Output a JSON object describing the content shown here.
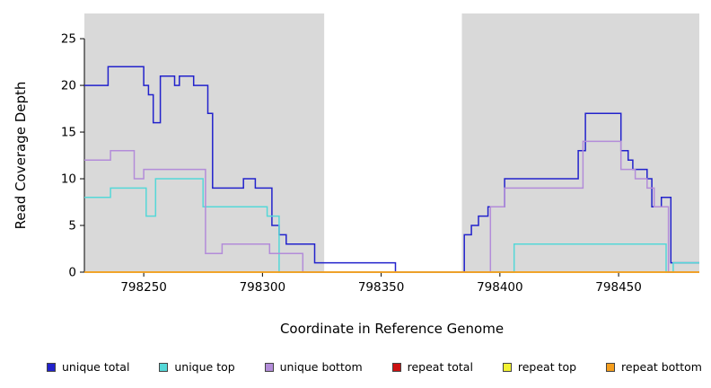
{
  "chart_data": {
    "type": "line",
    "subtype": "step",
    "xlabel": "Coordinate in Reference Genome",
    "ylabel": "Read Coverage Depth",
    "xlim": [
      798225,
      798484
    ],
    "ylim": [
      0,
      27.7
    ],
    "xticks": [
      798250,
      798300,
      798350,
      798400,
      798450
    ],
    "yticks": [
      0,
      5,
      10,
      15,
      20,
      25
    ],
    "grid": "off",
    "legend_position": "bottom",
    "plot_background": "#ffffff",
    "shaded_regions": [
      {
        "x0": 798225,
        "x1": 798326,
        "color": "#d9d9d9"
      },
      {
        "x0": 798384,
        "x1": 798484,
        "color": "#d9d9d9"
      }
    ],
    "series": [
      {
        "name": "unique total",
        "color": "#2222cc",
        "step_points": [
          [
            798225,
            20
          ],
          [
            798235,
            22
          ],
          [
            798250,
            20
          ],
          [
            798252,
            19
          ],
          [
            798254,
            16
          ],
          [
            798257,
            21
          ],
          [
            798263,
            20
          ],
          [
            798265,
            21
          ],
          [
            798271,
            20
          ],
          [
            798277,
            17
          ],
          [
            798279,
            9
          ],
          [
            798292,
            10
          ],
          [
            798297,
            9
          ],
          [
            798304,
            5
          ],
          [
            798307,
            4
          ],
          [
            798310,
            3
          ],
          [
            798322,
            1
          ],
          [
            798356,
            0
          ],
          [
            798385,
            4
          ],
          [
            798388,
            5
          ],
          [
            798391,
            6
          ],
          [
            798395,
            7
          ],
          [
            798402,
            10
          ],
          [
            798433,
            13
          ],
          [
            798436,
            17
          ],
          [
            798451,
            13
          ],
          [
            798454,
            12
          ],
          [
            798456,
            11
          ],
          [
            798462,
            10
          ],
          [
            798464,
            7
          ],
          [
            798468,
            8
          ],
          [
            798472,
            1
          ],
          [
            798484,
            1
          ]
        ]
      },
      {
        "name": "unique top",
        "color": "#55d8d8",
        "step_points": [
          [
            798225,
            8
          ],
          [
            798236,
            9
          ],
          [
            798251,
            6
          ],
          [
            798255,
            10
          ],
          [
            798275,
            7
          ],
          [
            798302,
            6
          ],
          [
            798307,
            0
          ],
          [
            798406,
            3
          ],
          [
            798470,
            0
          ],
          [
            798473,
            1
          ],
          [
            798484,
            1
          ]
        ]
      },
      {
        "name": "unique bottom",
        "color": "#b38cd9",
        "step_points": [
          [
            798225,
            12
          ],
          [
            798236,
            13
          ],
          [
            798246,
            10
          ],
          [
            798250,
            11
          ],
          [
            798276,
            2
          ],
          [
            798283,
            3
          ],
          [
            798303,
            2
          ],
          [
            798317,
            0
          ],
          [
            798396,
            7
          ],
          [
            798402,
            9
          ],
          [
            798435,
            14
          ],
          [
            798451,
            11
          ],
          [
            798457,
            10
          ],
          [
            798462,
            9
          ],
          [
            798465,
            7
          ],
          [
            798471,
            0
          ],
          [
            798484,
            0
          ]
        ]
      },
      {
        "name": "repeat total",
        "color": "#cc1111",
        "step_points": [
          [
            798225,
            0
          ],
          [
            798484,
            0
          ]
        ]
      },
      {
        "name": "repeat top",
        "color": "#f2f233",
        "step_points": [
          [
            798225,
            0
          ],
          [
            798484,
            0
          ]
        ]
      },
      {
        "name": "repeat bottom",
        "color": "#f59e1d",
        "step_points": [
          [
            798225,
            0
          ],
          [
            798484,
            0
          ]
        ]
      }
    ]
  }
}
